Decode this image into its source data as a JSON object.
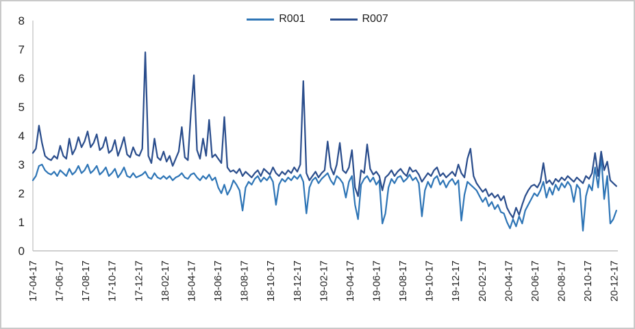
{
  "window": {
    "background": "#ffffff",
    "border_color": "#c9c9c9",
    "axis_line_color": "#bfbfbf",
    "label_color": "#1f1f1f"
  },
  "chart_data": {
    "type": "line",
    "title": "",
    "xlabel": "",
    "ylabel": "",
    "legend_position": "top-center",
    "grid": false,
    "y_axis": {
      "min": 0,
      "max": 8,
      "step": 1,
      "tick_labels": [
        "0",
        "1",
        "2",
        "3",
        "4",
        "5",
        "6",
        "7",
        "8"
      ]
    },
    "x_axis": {
      "tick_labels": [
        "17-04-17",
        "17-06-17",
        "17-08-17",
        "17-10-17",
        "17-12-17",
        "18-02-17",
        "18-04-17",
        "18-06-17",
        "18-08-17",
        "18-10-17",
        "18-12-17",
        "19-02-17",
        "19-04-17",
        "19-06-17",
        "19-08-17",
        "19-10-17",
        "19-12-17",
        "20-02-17",
        "20-04-17",
        "20-06-17",
        "20-08-17",
        "20-10-17",
        "20-12-17"
      ],
      "tick_weeks": [
        0,
        8.7,
        17.39,
        26.09,
        34.78,
        43.48,
        52.17,
        60.87,
        69.57,
        78.26,
        86.96,
        95.65,
        104.35,
        113.04,
        121.74,
        130.43,
        139.13,
        147.83,
        156.52,
        165.22,
        173.91,
        182.61,
        191.3
      ],
      "label_rotation_deg": 90
    },
    "sampling": "weekly (approx.), week 0 = 17-04-17",
    "weeks_total": 192.5,
    "series": [
      {
        "name": "R001",
        "color": "#2E75B6",
        "values": [
          2.45,
          2.6,
          2.95,
          3.0,
          2.8,
          2.7,
          2.65,
          2.75,
          2.6,
          2.8,
          2.7,
          2.6,
          2.85,
          2.65,
          2.75,
          2.95,
          2.7,
          2.8,
          3.0,
          2.7,
          2.8,
          2.95,
          2.65,
          2.75,
          2.9,
          2.6,
          2.7,
          2.85,
          2.55,
          2.7,
          2.9,
          2.6,
          2.55,
          2.7,
          2.55,
          2.6,
          2.65,
          2.75,
          2.55,
          2.5,
          2.7,
          2.55,
          2.5,
          2.6,
          2.5,
          2.6,
          2.45,
          2.55,
          2.6,
          2.7,
          2.55,
          2.5,
          2.65,
          2.7,
          2.55,
          2.45,
          2.6,
          2.5,
          2.65,
          2.45,
          2.55,
          2.2,
          2.0,
          2.3,
          1.95,
          2.15,
          2.45,
          2.3,
          2.1,
          1.4,
          2.2,
          2.4,
          2.3,
          2.5,
          2.6,
          2.4,
          2.55,
          2.45,
          2.6,
          2.4,
          1.6,
          2.3,
          2.5,
          2.4,
          2.55,
          2.45,
          2.6,
          2.5,
          2.65,
          2.4,
          1.3,
          2.2,
          2.45,
          2.55,
          2.35,
          2.5,
          2.6,
          2.7,
          2.45,
          2.3,
          2.6,
          2.5,
          2.35,
          1.85,
          2.4,
          2.6,
          1.6,
          1.1,
          2.3,
          2.5,
          2.6,
          2.4,
          2.55,
          2.3,
          2.45,
          0.95,
          1.3,
          2.2,
          2.5,
          2.35,
          2.55,
          2.6,
          2.4,
          2.5,
          2.65,
          2.45,
          2.55,
          2.35,
          1.2,
          2.1,
          2.4,
          2.2,
          2.5,
          2.6,
          2.3,
          2.45,
          2.2,
          2.4,
          2.5,
          2.3,
          2.45,
          1.05,
          1.95,
          2.4,
          2.3,
          2.2,
          2.1,
          1.9,
          1.7,
          1.85,
          1.55,
          1.7,
          1.45,
          1.6,
          1.35,
          1.3,
          1.0,
          0.78,
          1.1,
          0.85,
          1.2,
          0.95,
          1.4,
          1.6,
          1.8,
          2.0,
          1.9,
          2.1,
          2.4,
          1.85,
          2.2,
          1.95,
          2.3,
          2.1,
          2.35,
          2.2,
          2.4,
          2.25,
          1.7,
          2.3,
          2.15,
          0.7,
          1.9,
          2.3,
          2.1,
          2.9,
          2.2,
          3.3,
          1.8,
          2.6,
          0.95,
          1.1,
          1.4
        ]
      },
      {
        "name": "R007",
        "color": "#2A4D8C",
        "values": [
          3.4,
          3.55,
          4.35,
          3.75,
          3.3,
          3.2,
          3.15,
          3.3,
          3.2,
          3.65,
          3.3,
          3.2,
          3.9,
          3.35,
          3.55,
          3.95,
          3.6,
          3.8,
          4.15,
          3.6,
          3.75,
          4.05,
          3.5,
          3.6,
          3.95,
          3.4,
          3.5,
          3.85,
          3.3,
          3.6,
          3.95,
          3.35,
          3.25,
          3.6,
          3.35,
          3.3,
          3.55,
          6.9,
          3.3,
          3.05,
          3.9,
          3.25,
          3.15,
          3.45,
          3.1,
          3.3,
          2.95,
          3.2,
          3.45,
          4.3,
          3.25,
          3.15,
          4.8,
          6.1,
          3.5,
          3.2,
          3.9,
          3.3,
          4.55,
          3.25,
          3.35,
          3.2,
          3.05,
          4.65,
          2.9,
          2.75,
          2.8,
          2.7,
          2.85,
          2.6,
          2.75,
          2.65,
          2.55,
          2.7,
          2.8,
          2.6,
          2.85,
          2.75,
          2.65,
          2.9,
          2.7,
          2.6,
          2.75,
          2.65,
          2.8,
          2.7,
          2.9,
          2.75,
          3.0,
          5.9,
          2.7,
          2.45,
          2.6,
          2.75,
          2.55,
          2.7,
          2.8,
          3.8,
          2.9,
          2.65,
          3.0,
          3.75,
          2.8,
          2.7,
          2.9,
          3.5,
          2.2,
          1.9,
          2.8,
          2.7,
          3.7,
          2.85,
          2.65,
          2.75,
          2.6,
          2.1,
          2.55,
          2.65,
          2.8,
          2.6,
          2.75,
          2.85,
          2.7,
          2.6,
          2.9,
          2.75,
          2.8,
          2.65,
          2.4,
          2.55,
          2.7,
          2.6,
          2.8,
          2.9,
          2.6,
          2.7,
          2.55,
          2.65,
          2.75,
          2.6,
          3.0,
          2.7,
          2.55,
          3.2,
          3.55,
          2.6,
          2.35,
          2.2,
          2.05,
          2.15,
          1.9,
          2.0,
          1.85,
          1.95,
          1.75,
          1.9,
          1.5,
          1.3,
          1.15,
          1.5,
          1.25,
          1.6,
          1.9,
          2.1,
          2.25,
          2.3,
          2.2,
          2.4,
          3.05,
          2.35,
          2.45,
          2.3,
          2.5,
          2.4,
          2.55,
          2.45,
          2.6,
          2.5,
          2.4,
          2.55,
          2.45,
          2.35,
          2.6,
          2.5,
          2.7,
          3.4,
          2.6,
          3.45,
          2.8,
          3.1,
          2.45,
          2.35,
          2.25
        ]
      }
    ]
  }
}
